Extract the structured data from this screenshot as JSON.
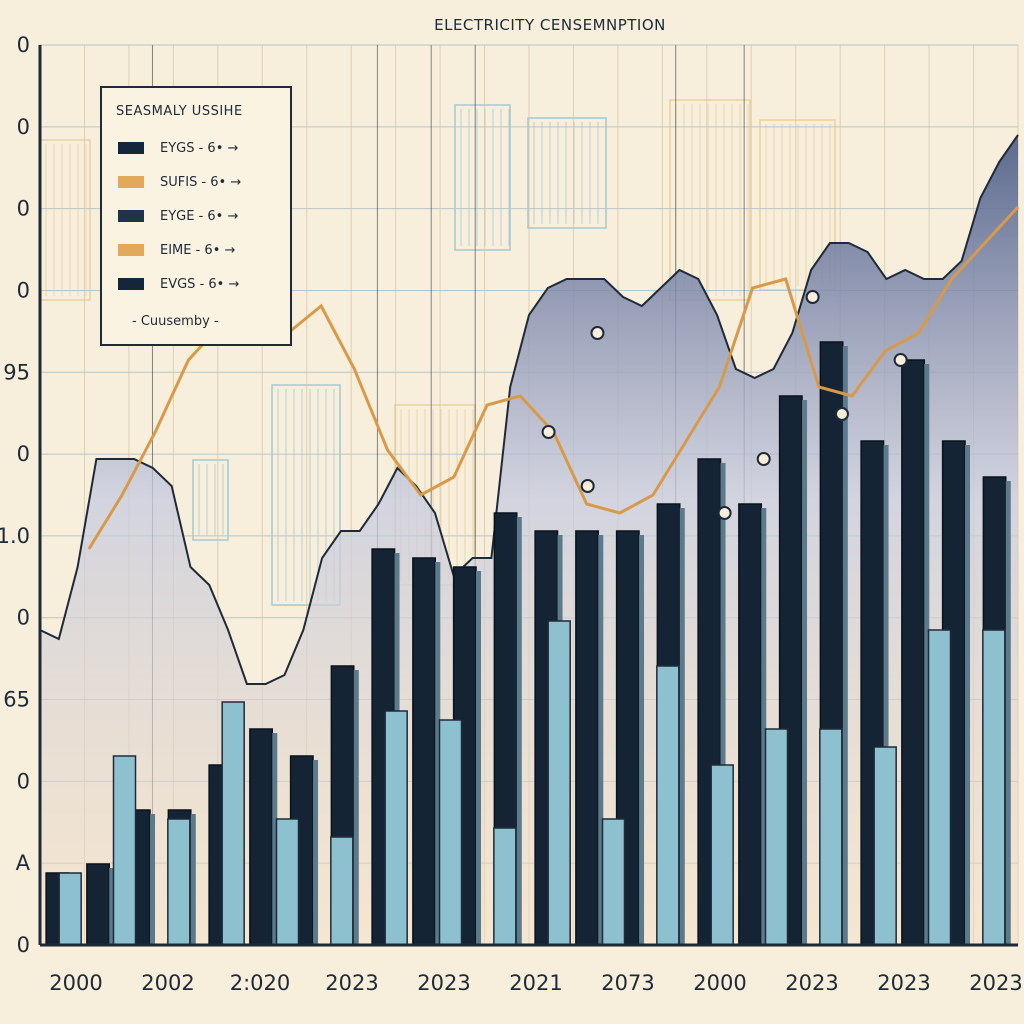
{
  "chart_data": {
    "type": "bar",
    "title": "ELECTRICITY CENSEMNPTION",
    "x_tick_labels": [
      "2000",
      "2002",
      "2:020",
      "2023",
      "2023",
      "2021",
      "2073",
      "2000",
      "2023",
      "2023",
      "2023"
    ],
    "y_tick_labels": [
      "0",
      "A",
      "0",
      "65",
      "0",
      "1.0",
      "0",
      "95",
      "0",
      "0",
      "0",
      "0"
    ],
    "ylim": [
      0,
      100
    ],
    "grid": true,
    "legend": {
      "title": "SEASMALY USSIHE",
      "placement": "top-left",
      "entries": [
        {
          "label": "EYGS - 6• →",
          "color": "#14263a"
        },
        {
          "label": "SUFIS - 6• →",
          "color": "#e2a95a"
        },
        {
          "label": "EYGE - 6• →",
          "color": "#1f3448"
        },
        {
          "label": "EIME - 6• →",
          "color": "#e2a95a"
        },
        {
          "label": "EVGS - 6• →",
          "color": "#14263a"
        }
      ],
      "footer": "- Cuusemby -"
    },
    "series": [
      {
        "kind": "dark bars",
        "color": "#142434",
        "values": [
          8,
          9,
          15,
          15,
          20,
          24,
          21,
          31,
          44,
          43,
          42,
          48,
          46,
          46,
          46,
          49,
          54,
          49,
          61,
          67,
          56,
          65,
          56,
          52
        ]
      },
      {
        "kind": "light bars",
        "color": "#8ec1cf",
        "values": [
          8,
          21,
          14,
          27,
          14,
          12,
          26,
          25,
          13,
          36,
          14,
          31,
          20,
          24,
          24,
          22,
          35,
          35
        ]
      },
      {
        "kind": "area",
        "color": "#cfd3e4",
        "values": [
          35,
          34,
          42,
          54,
          54,
          54,
          53,
          51,
          42,
          40,
          35,
          29,
          29,
          30,
          35,
          43,
          46,
          46,
          49,
          53,
          51,
          48,
          41,
          43,
          43,
          62,
          70,
          73,
          74,
          74,
          74,
          72,
          71,
          73,
          75,
          74,
          70,
          64,
          63,
          64,
          68,
          75,
          78,
          78,
          77,
          74,
          75,
          74,
          74,
          76,
          83,
          87,
          90
        ]
      },
      {
        "kind": "line",
        "color": "#d89a4a",
        "values": [
          44,
          50,
          57,
          65,
          69,
          68,
          68,
          71,
          64,
          55,
          50,
          52,
          60,
          61,
          57,
          49,
          48,
          50,
          56,
          62,
          73,
          74,
          62,
          61,
          66,
          68,
          74,
          78,
          82
        ]
      }
    ],
    "markers": [
      {
        "x": 0.52,
        "y": 57
      },
      {
        "x": 0.57,
        "y": 68
      },
      {
        "x": 0.56,
        "y": 51
      },
      {
        "x": 0.74,
        "y": 54
      },
      {
        "x": 0.7,
        "y": 48
      },
      {
        "x": 0.79,
        "y": 72
      },
      {
        "x": 0.82,
        "y": 59
      },
      {
        "x": 0.88,
        "y": 65
      }
    ]
  }
}
